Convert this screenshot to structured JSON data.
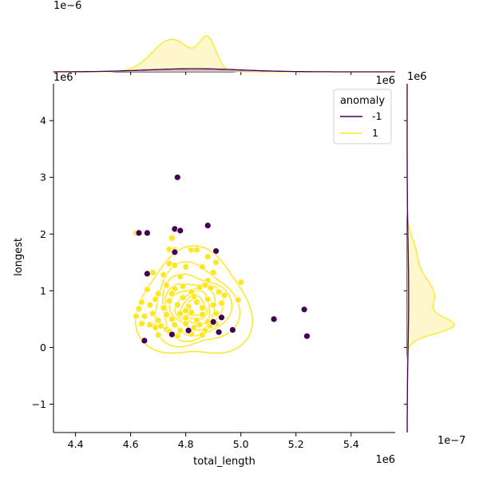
{
  "chart_data": {
    "type": "scatter",
    "xlabel": "total_length",
    "ylabel": "longest",
    "x_offset_label": "1e6",
    "y_offset_label": "1e6",
    "top_marginal_offset_label": "1e−6",
    "top_marginal_x_offset_label": "1e6",
    "right_marginal_y_offset_label": "1e6",
    "right_marginal_offset_label": "1e−7",
    "xlim": [
      4.32,
      5.56
    ],
    "ylim": [
      -1.5,
      4.65
    ],
    "xticks": [
      "4.4",
      "4.6",
      "4.8",
      "5.0",
      "5.2",
      "5.4"
    ],
    "xtick_values": [
      4.4,
      4.6,
      4.8,
      5.0,
      5.2,
      5.4
    ],
    "yticks": [
      "−1",
      "0",
      "1",
      "2",
      "3",
      "4"
    ],
    "ytick_values": [
      -1,
      0,
      1,
      2,
      3,
      4
    ],
    "grid": false,
    "legend": {
      "title": "anomaly",
      "placement": "top-right",
      "entries": [
        {
          "label": "-1",
          "color": "#440154"
        },
        {
          "label": "1",
          "color": "#fde725"
        }
      ]
    },
    "series": [
      {
        "name": "-1",
        "color": "#440154",
        "points": [
          [
            4.77,
            3.0
          ],
          [
            4.88,
            2.15
          ],
          [
            4.63,
            2.02
          ],
          [
            4.66,
            2.02
          ],
          [
            4.76,
            2.09
          ],
          [
            4.78,
            2.06
          ],
          [
            4.91,
            1.7
          ],
          [
            4.66,
            1.3
          ],
          [
            4.76,
            1.68
          ],
          [
            4.93,
            0.53
          ],
          [
            4.9,
            0.45
          ],
          [
            4.97,
            0.31
          ],
          [
            5.12,
            0.5
          ],
          [
            5.23,
            0.67
          ],
          [
            5.24,
            0.2
          ],
          [
            4.92,
            0.27
          ],
          [
            4.75,
            0.23
          ],
          [
            4.81,
            0.3
          ],
          [
            4.65,
            0.12
          ]
        ]
      },
      {
        "name": "1",
        "color": "#fde725",
        "points": [
          [
            4.62,
            2.02
          ],
          [
            4.75,
            1.93
          ],
          [
            4.74,
            1.73
          ],
          [
            4.76,
            1.72
          ],
          [
            4.82,
            1.72
          ],
          [
            4.84,
            1.72
          ],
          [
            4.88,
            1.6
          ],
          [
            4.91,
            1.5
          ],
          [
            4.68,
            1.32
          ],
          [
            4.74,
            1.48
          ],
          [
            4.76,
            1.45
          ],
          [
            4.72,
            1.28
          ],
          [
            4.78,
            1.25
          ],
          [
            4.8,
            1.42
          ],
          [
            4.86,
            1.42
          ],
          [
            4.9,
            1.32
          ],
          [
            4.88,
            1.18
          ],
          [
            5.0,
            1.15
          ],
          [
            4.66,
            1.02
          ],
          [
            4.7,
            0.95
          ],
          [
            4.73,
            1.1
          ],
          [
            4.76,
            1.03
          ],
          [
            4.79,
            1.08
          ],
          [
            4.82,
            0.98
          ],
          [
            4.85,
            1.06
          ],
          [
            4.87,
            1.1
          ],
          [
            4.89,
            1.05
          ],
          [
            4.92,
            0.98
          ],
          [
            4.94,
            0.92
          ],
          [
            4.64,
            0.8
          ],
          [
            4.67,
            0.75
          ],
          [
            4.69,
            0.85
          ],
          [
            4.72,
            0.7
          ],
          [
            4.74,
            0.82
          ],
          [
            4.77,
            0.75
          ],
          [
            4.79,
            0.88
          ],
          [
            4.81,
            0.72
          ],
          [
            4.84,
            0.8
          ],
          [
            4.86,
            0.7
          ],
          [
            4.88,
            0.85
          ],
          [
            4.9,
            0.75
          ],
          [
            4.93,
            0.78
          ],
          [
            4.99,
            0.84
          ],
          [
            4.63,
            0.68
          ],
          [
            4.65,
            0.55
          ],
          [
            4.68,
            0.6
          ],
          [
            4.7,
            0.48
          ],
          [
            4.73,
            0.58
          ],
          [
            4.75,
            0.5
          ],
          [
            4.78,
            0.6
          ],
          [
            4.8,
            0.52
          ],
          [
            4.82,
            0.62
          ],
          [
            4.84,
            0.48
          ],
          [
            4.86,
            0.58
          ],
          [
            4.88,
            0.45
          ],
          [
            4.91,
            0.6
          ],
          [
            4.62,
            0.55
          ],
          [
            4.64,
            0.42
          ],
          [
            4.67,
            0.4
          ],
          [
            4.69,
            0.35
          ],
          [
            4.71,
            0.38
          ],
          [
            4.73,
            0.32
          ],
          [
            4.76,
            0.4
          ],
          [
            4.78,
            0.3
          ],
          [
            4.8,
            0.42
          ],
          [
            4.83,
            0.35
          ],
          [
            4.85,
            0.4
          ],
          [
            4.87,
            0.3
          ],
          [
            4.89,
            0.38
          ],
          [
            4.91,
            0.42
          ],
          [
            4.7,
            0.22
          ],
          [
            4.74,
            0.28
          ],
          [
            4.77,
            0.2
          ],
          [
            4.82,
            0.24
          ],
          [
            4.86,
            0.22
          ],
          [
            4.75,
            0.95
          ],
          [
            4.8,
            0.65
          ],
          [
            4.83,
            0.9
          ]
        ]
      }
    ],
    "density_contours": {
      "series": "1",
      "color": "#fde725",
      "center": [
        4.83,
        0.68
      ],
      "levels": [
        {
          "rx": 0.19,
          "ry": 1.02
        },
        {
          "rx": 0.14,
          "ry": 0.78
        },
        {
          "rx": 0.115,
          "ry": 0.62
        },
        {
          "rx": 0.095,
          "ry": 0.5
        },
        {
          "rx": 0.075,
          "ry": 0.4
        },
        {
          "rx": 0.058,
          "ry": 0.31
        },
        {
          "rx": 0.042,
          "ry": 0.23
        },
        {
          "rx": 0.028,
          "ry": 0.15
        }
      ]
    },
    "top_marginal": {
      "type": "kde",
      "series": [
        {
          "name": "1",
          "color": "#fde725",
          "fill": "#fef6c2",
          "peak_x": 4.88,
          "shoulder_x": 4.75,
          "spread": 0.07,
          "max_density": 3.5
        },
        {
          "name": "-1",
          "color": "#440154",
          "fill": "#c9b0b2",
          "peak_x": 4.83,
          "spread": 0.17,
          "max_density": 0.2
        }
      ]
    },
    "right_marginal": {
      "type": "kde",
      "series": [
        {
          "name": "1",
          "color": "#fde725",
          "fill": "#fef6c2",
          "peak_y": 0.38,
          "max_density": 8.0
        },
        {
          "name": "-1",
          "color": "#440154",
          "fill": "#c9b0b2",
          "peak_y": 0.9,
          "max_density": 0.2
        }
      ]
    }
  }
}
